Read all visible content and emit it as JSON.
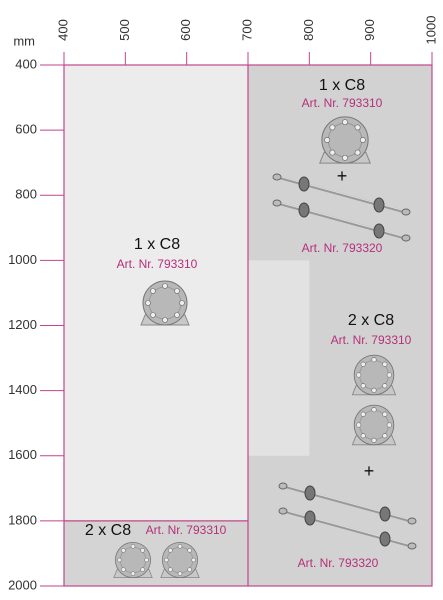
{
  "unit": "mm",
  "x_axis": {
    "ticks": [
      400,
      500,
      600,
      700,
      800,
      900,
      1000
    ]
  },
  "y_axis": {
    "ticks": [
      400,
      600,
      800,
      1000,
      1200,
      1400,
      1600,
      1800,
      2000
    ]
  },
  "panels": [
    {
      "quantity": "1 x C8",
      "article": "Art. Nr. 793310",
      "rod_article": "Art. Nr. 793320",
      "plus": "+"
    },
    {
      "quantity": "1 x C8",
      "article": "Art. Nr. 793310"
    },
    {
      "quantity": "2 x C8",
      "article": "Art. Nr. 793310",
      "rod_article": "Art. Nr. 793320",
      "plus": "+"
    },
    {
      "quantity": "2 x C8",
      "article": "Art. Nr. 793310"
    }
  ]
}
